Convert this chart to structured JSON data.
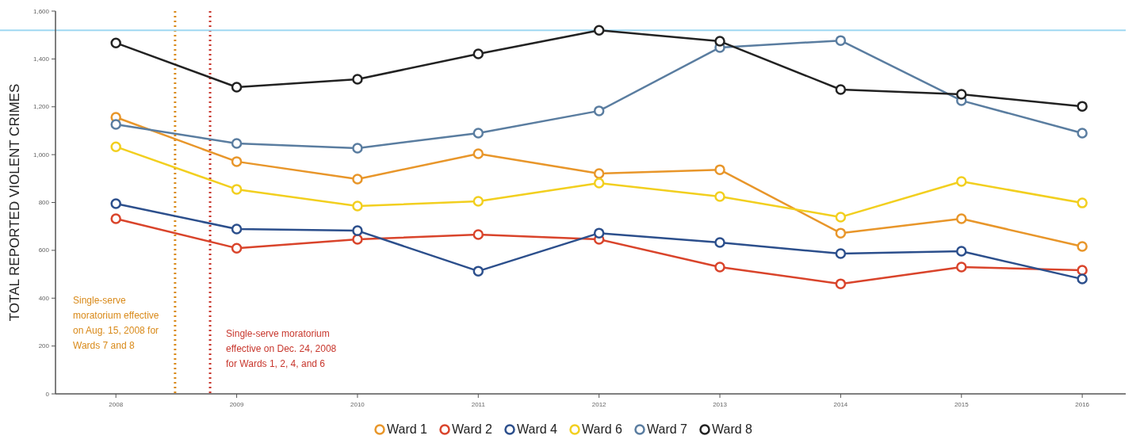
{
  "chart_data": {
    "type": "line",
    "ylabel": "TOTAL REPORTED VIOLENT CRIMES",
    "x": [
      2008,
      2009,
      2010,
      2011,
      2012,
      2013,
      2014,
      2015,
      2016
    ],
    "xlim": [
      2007.5,
      2016.36
    ],
    "xticks": [
      2008,
      2009,
      2010,
      2011,
      2012,
      2013,
      2014,
      2015,
      2016
    ],
    "ylim": [
      0,
      1600
    ],
    "yticks": [
      0,
      200,
      400,
      600,
      800,
      {
        "value": 1000,
        "label": "1,000"
      },
      {
        "value": 1200,
        "label": "1,200"
      },
      {
        "value": 1400,
        "label": "1,400"
      },
      {
        "value": 1600,
        "label": "1,600"
      }
    ],
    "series": [
      {
        "name": "Ward 1",
        "color": "#e8962a",
        "values": [
          1156,
          971,
          898,
          1004,
          921,
          937,
          672,
          732,
          616
        ]
      },
      {
        "name": "Ward 2",
        "color": "#d9442b",
        "values": [
          732,
          609,
          646,
          666,
          646,
          530,
          460,
          530,
          517
        ]
      },
      {
        "name": "Ward 4",
        "color": "#2c4f8c",
        "values": [
          795,
          689,
          682,
          513,
          672,
          633,
          586,
          596,
          480
        ]
      },
      {
        "name": "Ward 6",
        "color": "#f2cf1f",
        "values": [
          1033,
          855,
          785,
          805,
          881,
          825,
          739,
          888,
          798
        ]
      },
      {
        "name": "Ward 7",
        "color": "#5a7da0",
        "values": [
          1126,
          1047,
          1027,
          1090,
          1183,
          1448,
          1477,
          1226,
          1090
        ]
      },
      {
        "name": "Ward 8",
        "color": "#222222",
        "values": [
          1467,
          1282,
          1315,
          1421,
          1520,
          1474,
          1272,
          1252,
          1202
        ]
      }
    ],
    "ref_lines": [
      {
        "axis": "x",
        "value": 2008.49,
        "label": "Single-serve moratorium effective on Aug. 15, 2008 for Wards 7 and 8",
        "color": "#d98a1a",
        "line_style": "dotted"
      },
      {
        "axis": "x",
        "value": 2008.78,
        "label": "Single-serve moratorium effective on Dec. 24, 2008 for Wards 1, 2, 4, and 6",
        "color": "#c8372d",
        "line_style": "dotted"
      },
      {
        "axis": "y",
        "value": 1520,
        "color": "#9fd8f2",
        "line_style": "solid"
      }
    ],
    "marker": "circle",
    "line_style": "solid",
    "grid": false,
    "legend": "bottom"
  }
}
